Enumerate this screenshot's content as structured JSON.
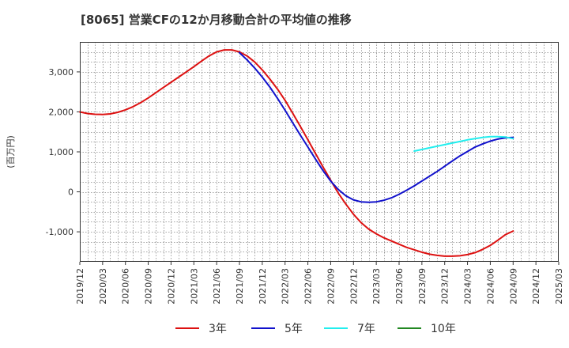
{
  "title": "[8065]  営業CFの12か月移動合計の平均値の推移",
  "chart_data": {
    "type": "line",
    "ylabel": "(百万円)",
    "ylim": [
      -1750,
      3750
    ],
    "yticks": [
      3000,
      2000,
      1000,
      0,
      -1000
    ],
    "ytick_labels": [
      "3,000",
      "2,000",
      "1,000",
      "0",
      "-1,000"
    ],
    "xlim": [
      "2019/12",
      "2025/03"
    ],
    "xtick_labels": [
      "2019/12",
      "2020/03",
      "2020/06",
      "2020/09",
      "2020/12",
      "2021/03",
      "2021/06",
      "2021/09",
      "2021/12",
      "2022/03",
      "2022/06",
      "2022/09",
      "2022/12",
      "2023/03",
      "2023/06",
      "2023/09",
      "2023/12",
      "2024/03",
      "2024/06",
      "2024/09",
      "2024/12",
      "2025/03"
    ],
    "grid": true,
    "legend_position": "bottom",
    "series": [
      {
        "name": "3年",
        "color": "#dd1111",
        "points": [
          [
            "2019/12",
            2000
          ],
          [
            "2020/01",
            1960
          ],
          [
            "2020/02",
            1940
          ],
          [
            "2020/03",
            1935
          ],
          [
            "2020/04",
            1950
          ],
          [
            "2020/05",
            1990
          ],
          [
            "2020/06",
            2050
          ],
          [
            "2020/07",
            2130
          ],
          [
            "2020/08",
            2230
          ],
          [
            "2020/09",
            2350
          ],
          [
            "2020/10",
            2480
          ],
          [
            "2020/11",
            2610
          ],
          [
            "2020/12",
            2740
          ],
          [
            "2021/01",
            2870
          ],
          [
            "2021/02",
            3000
          ],
          [
            "2021/03",
            3130
          ],
          [
            "2021/04",
            3270
          ],
          [
            "2021/05",
            3400
          ],
          [
            "2021/06",
            3500
          ],
          [
            "2021/07",
            3550
          ],
          [
            "2021/08",
            3550
          ],
          [
            "2021/09",
            3500
          ],
          [
            "2021/10",
            3400
          ],
          [
            "2021/11",
            3250
          ],
          [
            "2021/12",
            3050
          ],
          [
            "2022/01",
            2820
          ],
          [
            "2022/02",
            2570
          ],
          [
            "2022/03",
            2290
          ],
          [
            "2022/04",
            1970
          ],
          [
            "2022/05",
            1640
          ],
          [
            "2022/06",
            1300
          ],
          [
            "2022/07",
            960
          ],
          [
            "2022/08",
            620
          ],
          [
            "2022/09",
            290
          ],
          [
            "2022/10",
            -30
          ],
          [
            "2022/11",
            -310
          ],
          [
            "2022/12",
            -560
          ],
          [
            "2023/01",
            -770
          ],
          [
            "2023/02",
            -930
          ],
          [
            "2023/03",
            -1050
          ],
          [
            "2023/04",
            -1150
          ],
          [
            "2023/05",
            -1230
          ],
          [
            "2023/06",
            -1310
          ],
          [
            "2023/07",
            -1390
          ],
          [
            "2023/08",
            -1450
          ],
          [
            "2023/09",
            -1510
          ],
          [
            "2023/10",
            -1560
          ],
          [
            "2023/11",
            -1590
          ],
          [
            "2023/12",
            -1610
          ],
          [
            "2024/01",
            -1610
          ],
          [
            "2024/02",
            -1600
          ],
          [
            "2024/03",
            -1570
          ],
          [
            "2024/04",
            -1520
          ],
          [
            "2024/05",
            -1440
          ],
          [
            "2024/06",
            -1340
          ],
          [
            "2024/07",
            -1210
          ],
          [
            "2024/08",
            -1070
          ],
          [
            "2024/09",
            -980
          ]
        ]
      },
      {
        "name": "5年",
        "color": "#1111cc",
        "points": [
          [
            "2021/09",
            3480
          ],
          [
            "2021/10",
            3300
          ],
          [
            "2021/11",
            3100
          ],
          [
            "2021/12",
            2870
          ],
          [
            "2022/01",
            2620
          ],
          [
            "2022/02",
            2340
          ],
          [
            "2022/03",
            2040
          ],
          [
            "2022/04",
            1730
          ],
          [
            "2022/05",
            1420
          ],
          [
            "2022/06",
            1120
          ],
          [
            "2022/07",
            820
          ],
          [
            "2022/08",
            530
          ],
          [
            "2022/09",
            270
          ],
          [
            "2022/10",
            60
          ],
          [
            "2022/11",
            -100
          ],
          [
            "2022/12",
            -200
          ],
          [
            "2023/01",
            -250
          ],
          [
            "2023/02",
            -260
          ],
          [
            "2023/03",
            -250
          ],
          [
            "2023/04",
            -210
          ],
          [
            "2023/05",
            -150
          ],
          [
            "2023/06",
            -60
          ],
          [
            "2023/07",
            40
          ],
          [
            "2023/08",
            150
          ],
          [
            "2023/09",
            270
          ],
          [
            "2023/10",
            390
          ],
          [
            "2023/11",
            510
          ],
          [
            "2023/12",
            640
          ],
          [
            "2024/01",
            770
          ],
          [
            "2024/02",
            900
          ],
          [
            "2024/03",
            1010
          ],
          [
            "2024/04",
            1120
          ],
          [
            "2024/05",
            1200
          ],
          [
            "2024/06",
            1270
          ],
          [
            "2024/07",
            1320
          ],
          [
            "2024/08",
            1350
          ],
          [
            "2024/09",
            1360
          ]
        ]
      },
      {
        "name": "7年",
        "color": "#22eeee",
        "points": [
          [
            "2023/08",
            1020
          ],
          [
            "2023/09",
            1060
          ],
          [
            "2023/10",
            1100
          ],
          [
            "2023/11",
            1140
          ],
          [
            "2023/12",
            1180
          ],
          [
            "2024/01",
            1220
          ],
          [
            "2024/02",
            1260
          ],
          [
            "2024/03",
            1300
          ],
          [
            "2024/04",
            1330
          ],
          [
            "2024/05",
            1360
          ],
          [
            "2024/06",
            1380
          ],
          [
            "2024/07",
            1380
          ],
          [
            "2024/08",
            1370
          ],
          [
            "2024/09",
            1330
          ]
        ]
      },
      {
        "name": "10年",
        "color": "#228822",
        "points": []
      }
    ]
  }
}
